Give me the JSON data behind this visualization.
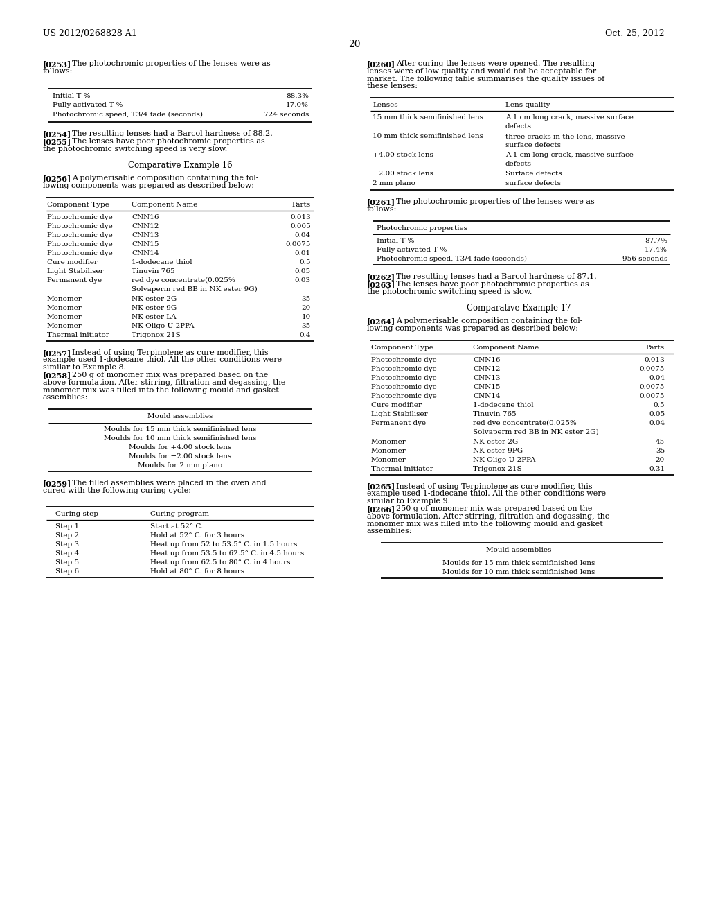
{
  "bg_color": "#ffffff",
  "header_left": "US 2012/0268828 A1",
  "header_right": "Oct. 25, 2012",
  "page_number": "20",
  "left_col": {
    "table1_rows": [
      [
        "Initial T %",
        "88.3%"
      ],
      [
        "Fully activated T %",
        "17.0%"
      ],
      [
        "Photochromic speed, T3/4 fade (seconds)",
        "724 seconds"
      ]
    ],
    "table2_rows": [
      [
        "Photochromic dye",
        "CNN16",
        "0.013"
      ],
      [
        "Photochromic dye",
        "CNN12",
        "0.005"
      ],
      [
        "Photochromic dye",
        "CNN13",
        "0.04"
      ],
      [
        "Photochromic dye",
        "CNN15",
        "0.0075"
      ],
      [
        "Photochromic dye",
        "CNN14",
        "0.01"
      ],
      [
        "Cure modifier",
        "1-dodecane thiol",
        "0.5"
      ],
      [
        "Light Stabiliser",
        "Tinuvin 765",
        "0.05"
      ],
      [
        "Permanent dye",
        "red dye concentrate(0.025%|Solvaperm red BB in NK ester 9G)",
        "0.03"
      ],
      [
        "Monomer",
        "NK ester 2G",
        "35"
      ],
      [
        "Monomer",
        "NK ester 9G",
        "20"
      ],
      [
        "Monomer",
        "NK ester LA",
        "10"
      ],
      [
        "Monomer",
        "NK Oligo U-2PPA",
        "35"
      ],
      [
        "Thermal initiator",
        "Trigonox 21S",
        "0.4"
      ]
    ],
    "table3_rows": [
      "Moulds for 15 mm thick semifinished lens",
      "Moulds for 10 mm thick semifinished lens",
      "Moulds for +4.00 stock lens",
      "Moulds for −2.00 stock lens",
      "Moulds for 2 mm plano"
    ],
    "table4_rows": [
      [
        "Step 1",
        "Start at 52° C."
      ],
      [
        "Step 2",
        "Hold at 52° C. for 3 hours"
      ],
      [
        "Step 3",
        "Heat up from 52 to 53.5° C. in 1.5 hours"
      ],
      [
        "Step 4",
        "Heat up from 53.5 to 62.5° C. in 4.5 hours"
      ],
      [
        "Step 5",
        "Heat up from 62.5 to 80° C. in 4 hours"
      ],
      [
        "Step 6",
        "Hold at 80° C. for 8 hours"
      ]
    ]
  },
  "right_col": {
    "table5_rows": [
      [
        "15 mm thick semifinished lens",
        "A 1 cm long crack, massive surface|defects"
      ],
      [
        "10 mm thick semifinished lens",
        "three cracks in the lens, massive|surface defects"
      ],
      [
        "+4.00 stock lens",
        "A 1 cm long crack, massive surface|defects"
      ],
      [
        "−2.00 stock lens",
        "Surface defects"
      ],
      [
        "2 mm plano",
        "surface defects"
      ]
    ],
    "table6_rows": [
      [
        "Initial T %",
        "87.7%"
      ],
      [
        "Fully activated T %",
        "17.4%"
      ],
      [
        "Photochromic speed, T3/4 fade (seconds)",
        "956 seconds"
      ]
    ],
    "table7_rows": [
      [
        "Photochromic dye",
        "CNN16",
        "0.013"
      ],
      [
        "Photochromic dye",
        "CNN12",
        "0.0075"
      ],
      [
        "Photochromic dye",
        "CNN13",
        "0.04"
      ],
      [
        "Photochromic dye",
        "CNN15",
        "0.0075"
      ],
      [
        "Photochromic dye",
        "CNN14",
        "0.0075"
      ],
      [
        "Cure modifier",
        "1-dodecane thiol",
        "0.5"
      ],
      [
        "Light Stabiliser",
        "Tinuvin 765",
        "0.05"
      ],
      [
        "Permanent dye",
        "red dye concentrate(0.025%|Solvaperm red BB in NK ester 2G)",
        "0.04"
      ],
      [
        "Monomer",
        "NK ester 2G",
        "45"
      ],
      [
        "Monomer",
        "NK ester 9PG",
        "35"
      ],
      [
        "Monomer",
        "NK Oligo U-2PPA",
        "20"
      ],
      [
        "Thermal initiator",
        "Trigonox 21S",
        "0.31"
      ]
    ],
    "table8_rows": [
      "Moulds for 15 mm thick semifinished lens",
      "Moulds for 10 mm thick semifinished lens"
    ]
  }
}
